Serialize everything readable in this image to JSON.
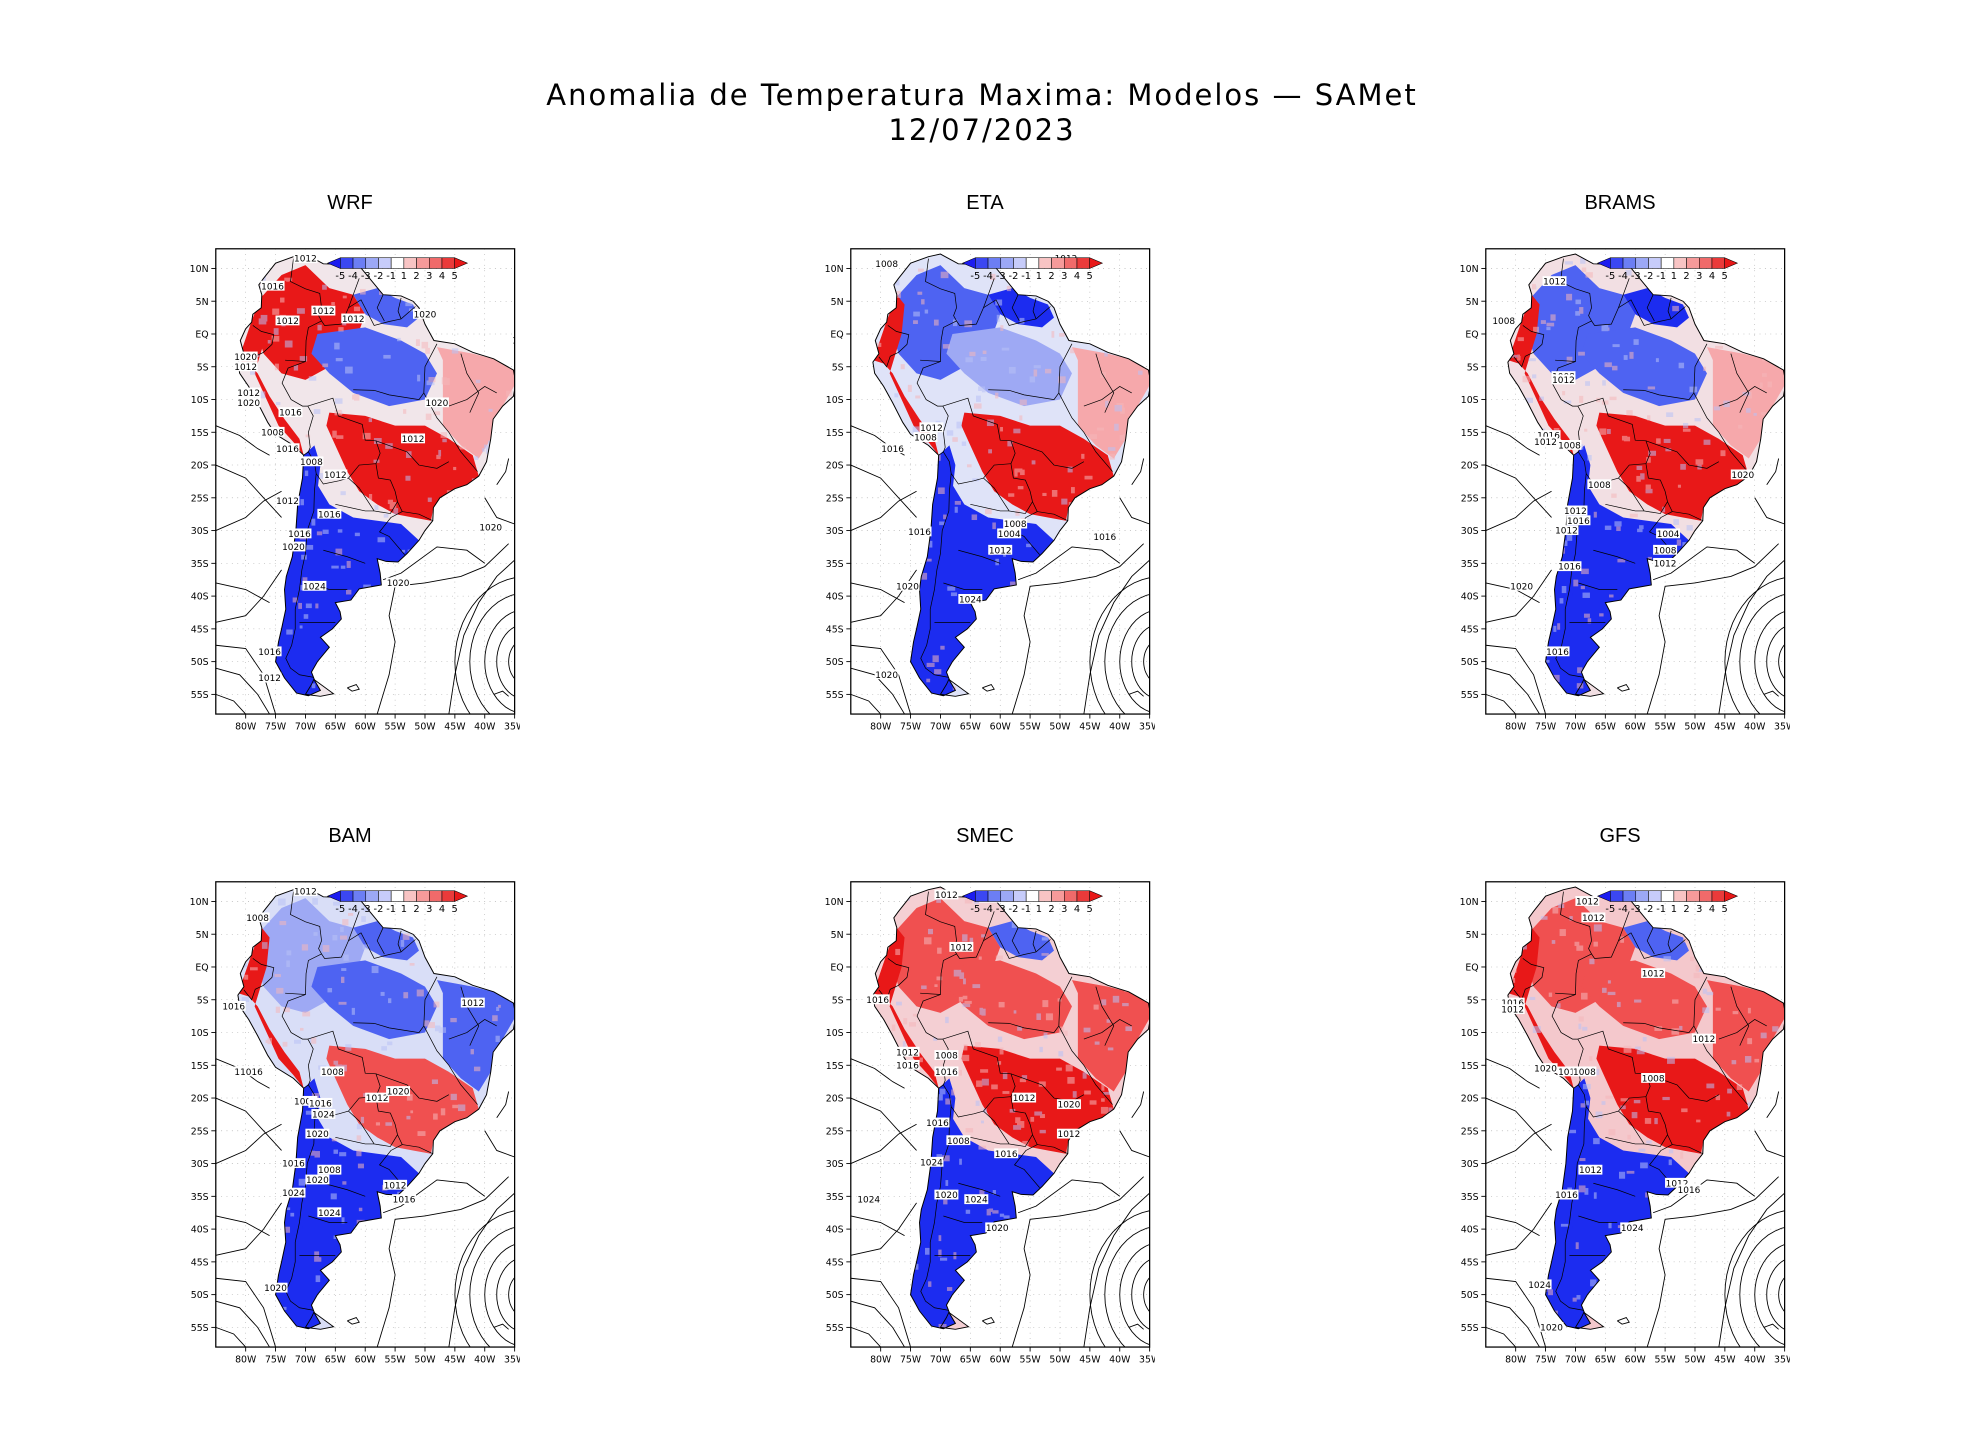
{
  "figure": {
    "title_line1": "Anomalia de Temperatura Maxima: Modelos — SAMet",
    "title_line2": "12/07/2023"
  },
  "axes": {
    "lat_labels": [
      "10N",
      "5N",
      "EQ",
      "5S",
      "10S",
      "15S",
      "20S",
      "25S",
      "30S",
      "35S",
      "40S",
      "45S",
      "50S",
      "55S"
    ],
    "lon_labels": [
      "80W",
      "75W",
      "70W",
      "65W",
      "60W",
      "55W",
      "50W",
      "45W",
      "40W",
      "35W"
    ]
  },
  "legend": {
    "tick_labels": [
      "-5",
      "-4",
      "-3",
      "-2",
      "-1",
      "1",
      "2",
      "3",
      "4",
      "5"
    ],
    "colors": [
      "#1c1cf0",
      "#3b47f2",
      "#6c7ef4",
      "#9ca8f6",
      "#c7ccfa",
      "#ffffff",
      "#f8c4c4",
      "#f69a9a",
      "#f06a6a",
      "#ea3a3a",
      "#e81818"
    ]
  },
  "colors": {
    "cold": "#1f3df0",
    "warm": "#ec2424",
    "land_pale": "#e9ecf8",
    "contour": "#000000"
  },
  "panels": [
    {
      "name": "WRF",
      "isobars": [
        "1012",
        "1016",
        "1012",
        "1012",
        "1012",
        "1020",
        "1016",
        "1020",
        "1012",
        "1012",
        "1020",
        "1016",
        "1008",
        "1016",
        "1008",
        "1012",
        "1012",
        "1020",
        "1012",
        "1016",
        "1016",
        "1020",
        "1024",
        "1020",
        "1020",
        "1016",
        "1012"
      ]
    },
    {
      "name": "ETA",
      "isobars": [
        "1008",
        "1012",
        "1012",
        "1008",
        "1016",
        "1016",
        "1004",
        "1008",
        "1016",
        "1012",
        "1020",
        "1024",
        "1020"
      ]
    },
    {
      "name": "BRAMS",
      "isobars": [
        "1012",
        "1008",
        "1008",
        "1012",
        "1016",
        "1012",
        "1008",
        "1008",
        "1012",
        "1016",
        "1012",
        "1020",
        "1004",
        "1008",
        "1016",
        "1012",
        "1020",
        "1016"
      ]
    },
    {
      "name": "BAM",
      "isobars": [
        "1012",
        "1008",
        "1016",
        "1012",
        "11016",
        "1008",
        "1012",
        "1020",
        "1008",
        "1016",
        "1024",
        "1020",
        "1016",
        "1008",
        "1012",
        "1016",
        "1020",
        "1024",
        "1024",
        "1020"
      ]
    },
    {
      "name": "SMEC",
      "isobars": [
        "1012",
        "1012",
        "1012",
        "1016",
        "1012",
        "1008",
        "1016",
        "1016",
        "1012",
        "1020",
        "1012",
        "1016",
        "1008",
        "1016",
        "1024",
        "1024",
        "1020",
        "1024",
        "1020"
      ]
    },
    {
      "name": "GFS",
      "isobars": [
        "1012",
        "1012",
        "1012",
        "1016",
        "1012",
        "1012",
        "1020",
        "1016",
        "1008",
        "1008",
        "1012",
        "1016",
        "1012",
        "1020",
        "1016",
        "1024",
        "1024",
        "1020"
      ]
    }
  ]
}
